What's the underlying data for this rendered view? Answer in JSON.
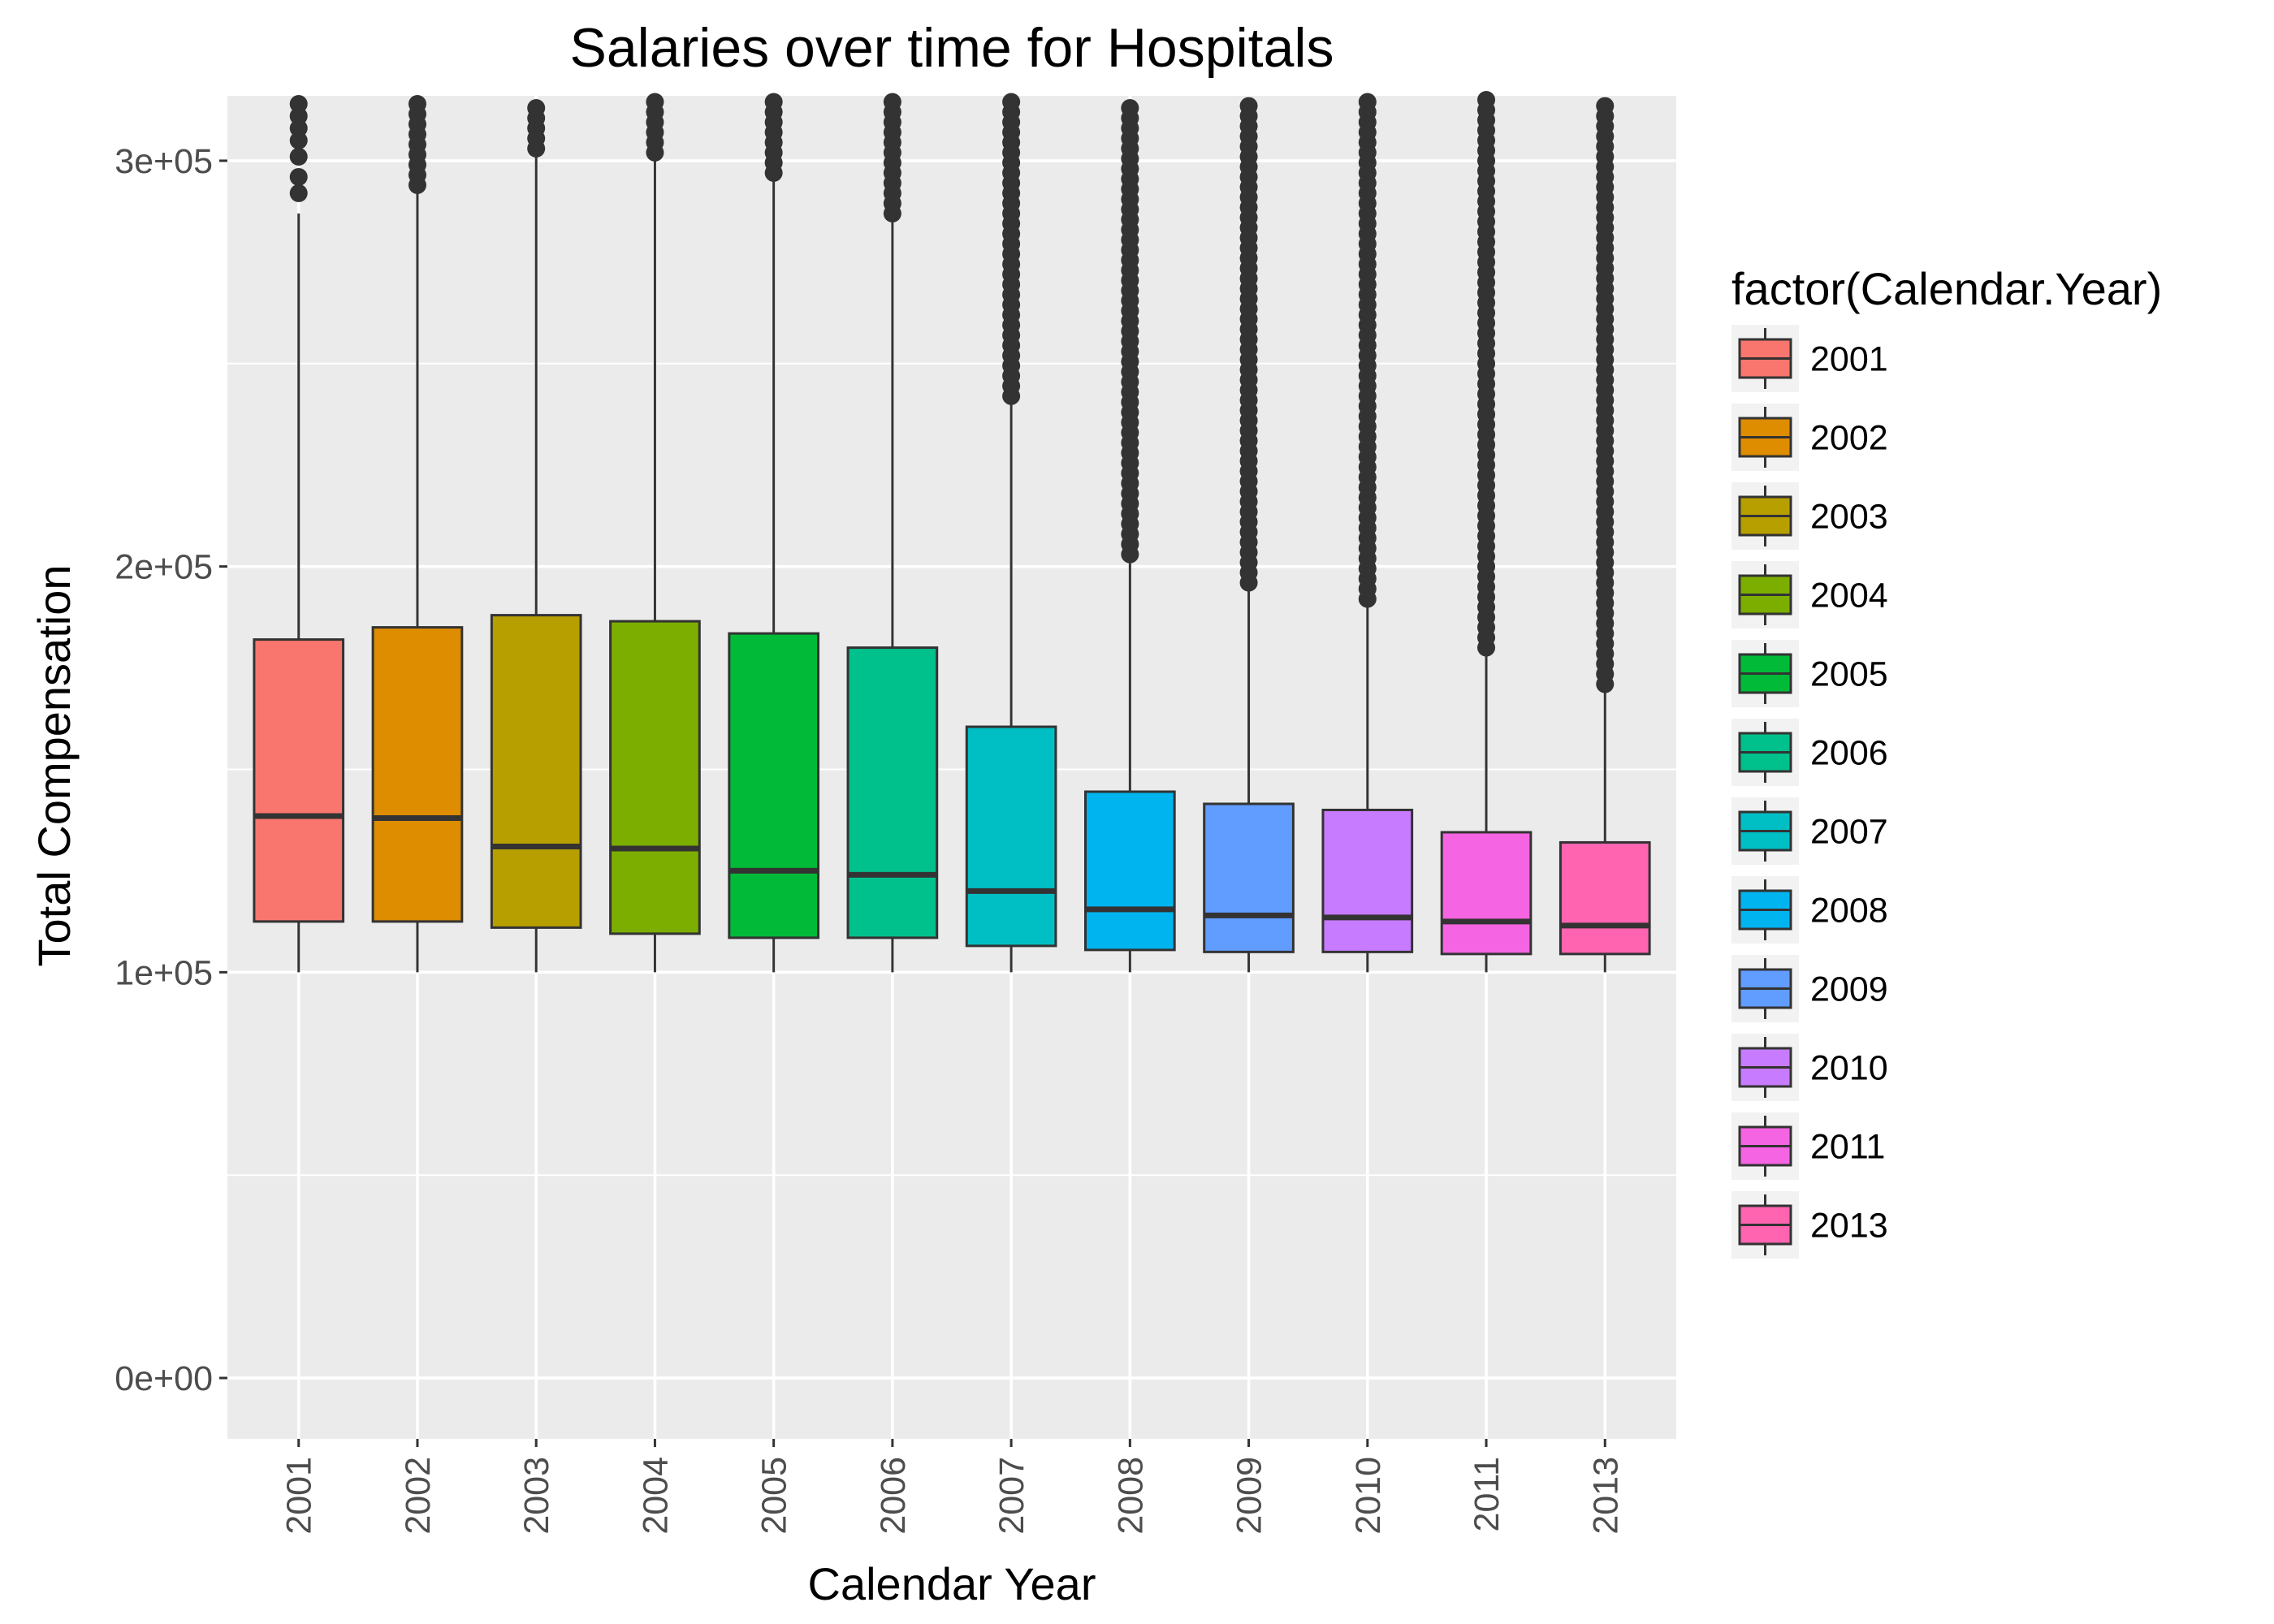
{
  "chart_data": {
    "type": "boxplot",
    "title": "Salaries over time for Hospitals",
    "xlabel": "Calendar Year",
    "ylabel": "Total Compensation",
    "ylim": [
      -15000,
      316000
    ],
    "y_ticks": [
      0,
      100000,
      200000,
      300000
    ],
    "y_tick_labels": [
      "0e+00",
      "1e+05",
      "2e+05",
      "3e+05"
    ],
    "grid": true,
    "legend": {
      "title": "factor(Calendar.Year)",
      "position": "right"
    },
    "categories": [
      "2001",
      "2002",
      "2003",
      "2004",
      "2005",
      "2006",
      "2007",
      "2008",
      "2009",
      "2010",
      "2011",
      "2013"
    ],
    "colors": [
      "#F8766D",
      "#DE8C00",
      "#B79F00",
      "#7CAE00",
      "#00BA38",
      "#00C08B",
      "#00BFC4",
      "#00B4F0",
      "#619CFF",
      "#C77CFF",
      "#F564E3",
      "#FF64B0"
    ],
    "boxes": [
      {
        "year": "2001",
        "whisker_low": 100000,
        "q1": 112500,
        "median": 138500,
        "q3": 182000,
        "whisker_high": 287000,
        "outliers": [
          292000,
          296000,
          301000,
          305000,
          308000,
          311000,
          314000
        ]
      },
      {
        "year": "2002",
        "whisker_low": 100000,
        "q1": 112500,
        "median": 138000,
        "q3": 185000,
        "whisker_high": 292000,
        "outliers_range": [
          294000,
          316000
        ]
      },
      {
        "year": "2003",
        "whisker_low": 100000,
        "q1": 111000,
        "median": 131000,
        "q3": 188000,
        "whisker_high": 302000,
        "outliers_range": [
          303000,
          316000
        ]
      },
      {
        "year": "2004",
        "whisker_low": 100000,
        "q1": 109500,
        "median": 130500,
        "q3": 186500,
        "whisker_high": 300000,
        "outliers_range": [
          302000,
          316000
        ]
      },
      {
        "year": "2005",
        "whisker_low": 100000,
        "q1": 108500,
        "median": 125000,
        "q3": 183500,
        "whisker_high": 296000,
        "outliers_range": [
          297000,
          316000
        ]
      },
      {
        "year": "2006",
        "whisker_low": 100000,
        "q1": 108500,
        "median": 124000,
        "q3": 180000,
        "whisker_high": 286000,
        "outliers_range": [
          287000,
          316000
        ]
      },
      {
        "year": "2007",
        "whisker_low": 100000,
        "q1": 106500,
        "median": 120000,
        "q3": 160500,
        "whisker_high": 240000,
        "outliers_range": [
          242000,
          316000
        ]
      },
      {
        "year": "2008",
        "whisker_low": 100000,
        "q1": 105500,
        "median": 115500,
        "q3": 144500,
        "whisker_high": 202000,
        "outliers_range": [
          203000,
          316000
        ]
      },
      {
        "year": "2009",
        "whisker_low": 100000,
        "q1": 105000,
        "median": 114000,
        "q3": 141500,
        "whisker_high": 195000,
        "outliers_range": [
          196000,
          316000
        ]
      },
      {
        "year": "2010",
        "whisker_low": 100000,
        "q1": 105000,
        "median": 113500,
        "q3": 140000,
        "whisker_high": 191000,
        "outliers_range": [
          192000,
          316000
        ]
      },
      {
        "year": "2011",
        "whisker_low": 100000,
        "q1": 104500,
        "median": 112500,
        "q3": 134500,
        "whisker_high": 178000,
        "outliers_range": [
          180000,
          316000
        ]
      },
      {
        "year": "2013",
        "whisker_low": 100000,
        "q1": 104500,
        "median": 111500,
        "q3": 132000,
        "whisker_high": 170000,
        "outliers_range": [
          171000,
          316000
        ]
      }
    ]
  }
}
